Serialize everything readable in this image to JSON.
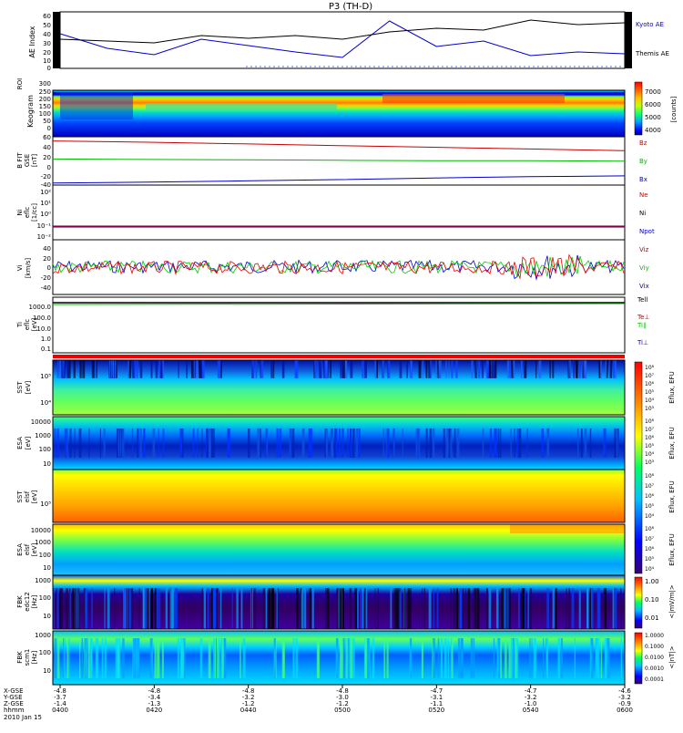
{
  "title": "P3 (TH-D)",
  "date_label": "2010 Jan 15",
  "time_axis": {
    "ticks": [
      "0400",
      "0420",
      "0440",
      "0500",
      "0520",
      "0540",
      "0600"
    ],
    "row_labels": [
      "X-GSE",
      "Y-GSE",
      "Z-GSE",
      "hhmm"
    ],
    "rows": [
      [
        "-4.8",
        "-4.8",
        "-4.8",
        "-4.8",
        "-4.7",
        "-4.7",
        "-4.6"
      ],
      [
        "-3.7",
        "-3.4",
        "-3.2",
        "-3.0",
        "-3.1",
        "-3.2",
        "-3.2"
      ],
      [
        "-1.4",
        "-1.3",
        "-1.2",
        "-1.2",
        "-1.1",
        "-1.0",
        "-0.9"
      ]
    ]
  },
  "panels": {
    "ae": {
      "label": "AE Index",
      "ticks": [
        "60",
        "50",
        "40",
        "30",
        "20",
        "10",
        "0"
      ],
      "legend": [
        "Kyoto AE",
        "Themis AE"
      ]
    },
    "keogram": {
      "label": "Keogram",
      "label2": "ROI",
      "ticks": [
        "300",
        "250",
        "200",
        "150",
        "100",
        "50",
        "0"
      ],
      "cbar_ticks": [
        "7000",
        "6000",
        "5000",
        "4000"
      ],
      "cbar_unit": "[counts]"
    },
    "bfit": {
      "label": "B FIT",
      "label2": "GSE",
      "label3": "[nT]",
      "ticks": [
        "60",
        "40",
        "20",
        "0",
        "-20",
        "-40"
      ],
      "legend": [
        "Bz",
        "By",
        "Bx"
      ]
    },
    "ni": {
      "label": "Ni",
      "label2": "eflc",
      "label3": "[1/cc]",
      "ticks": [
        "10²",
        "10¹",
        "10⁰",
        "10⁻¹",
        "10⁻²"
      ],
      "legend": [
        "Ne",
        "Ni",
        "Npot"
      ]
    },
    "vi": {
      "label": "Vi",
      "label2": "[km/s]",
      "ticks": [
        "40",
        "20",
        "0",
        "-20",
        "-40"
      ],
      "legend": [
        "Viz",
        "Viy",
        "Vix"
      ]
    },
    "ti": {
      "label": "Ti",
      "label2": "eflc",
      "label3": "[eV]",
      "ticks": [
        "1000.0",
        "100.0",
        "10.0",
        "1.0",
        "0.1"
      ],
      "legend": [
        "Tell",
        "Te⊥",
        "Ti∥",
        "Ti⊥"
      ]
    },
    "sst1": {
      "label": "SST",
      "label2": "[eV]",
      "ticks": [
        "10⁵",
        "10⁴"
      ],
      "cbar_ticks": [
        "10⁸",
        "10⁷",
        "10⁶",
        "10⁵",
        "10⁴",
        "10³"
      ],
      "cbar_unit": "Eflux, EFU"
    },
    "esa1": {
      "label": "ESA",
      "label2": "[eV]",
      "ticks": [
        "10000",
        "1000",
        "100",
        "10"
      ],
      "cbar_ticks": [
        "10⁸",
        "10⁷",
        "10⁶",
        "10⁵",
        "10⁴",
        "10³"
      ],
      "cbar_unit": "Eflux, EFU"
    },
    "sst2": {
      "label": "SST",
      "label2": "elsf",
      "label3": "[eV]",
      "ticks": [
        "10⁵"
      ],
      "cbar_ticks": [
        "10⁸",
        "10⁷",
        "10⁶",
        "10⁵",
        "10⁴"
      ],
      "cbar_unit": "Eflux, EFU"
    },
    "esa2": {
      "label": "ESA",
      "label2": "elsf",
      "label3": "[eV]",
      "ticks": [
        "10000",
        "1000",
        "100",
        "10"
      ],
      "cbar_ticks": [
        "10⁸",
        "10⁷",
        "10⁶",
        "10⁵",
        "10⁴"
      ],
      "cbar_unit": "Eflux, EFU"
    },
    "fbk1": {
      "label": "FBK",
      "label2": "edc12",
      "label3": "[Hz]",
      "ticks": [
        "1000",
        "100",
        "10"
      ],
      "cbar_ticks": [
        "1.00",
        "0.10",
        "0.01"
      ],
      "cbar_unit": "<|mV/m|>"
    },
    "fbk2": {
      "label": "FBK",
      "label2": "scm1",
      "label3": "[Hz]",
      "ticks": [
        "1000",
        "100",
        "10"
      ],
      "cbar_ticks": [
        "1.0000",
        "0.1000",
        "0.0100",
        "0.0010",
        "0.0001"
      ],
      "cbar_unit": "<|nT|>"
    }
  },
  "colors": {
    "kyoto": "#0000cc",
    "themis": "#000000",
    "bz": "#cc0000",
    "by": "#00bb00",
    "bx": "#0000cc"
  },
  "chart_data": [
    {
      "type": "line",
      "title": "P3 (TH-D)",
      "ylabel": "AE Index",
      "ylim": [
        0,
        60
      ],
      "x": [
        "0400",
        "0410",
        "0420",
        "0430",
        "0440",
        "0450",
        "0500",
        "0510",
        "0520",
        "0530",
        "0540",
        "0550",
        "0600"
      ],
      "series": [
        {
          "name": "Kyoto AE",
          "values": [
            38,
            22,
            15,
            32,
            25,
            18,
            12,
            52,
            24,
            30,
            14,
            18,
            16
          ]
        },
        {
          "name": "Themis AE",
          "values": [
            32,
            30,
            28,
            36,
            33,
            36,
            32,
            40,
            44,
            42,
            53,
            48,
            50
          ]
        }
      ]
    },
    {
      "type": "line",
      "ylabel": "B FIT GSE [nT]",
      "ylim": [
        -50,
        65
      ],
      "x": [
        "0400",
        "0420",
        "0440",
        "0500",
        "0520",
        "0540",
        "0600"
      ],
      "series": [
        {
          "name": "Bz",
          "values": [
            55,
            52,
            48,
            44,
            40,
            36,
            32
          ]
        },
        {
          "name": "By",
          "values": [
            12,
            11,
            10,
            9,
            8,
            8,
            7
          ]
        },
        {
          "name": "Bx",
          "values": [
            -45,
            -43,
            -40,
            -37,
            -33,
            -30,
            -28
          ]
        }
      ]
    }
  ]
}
